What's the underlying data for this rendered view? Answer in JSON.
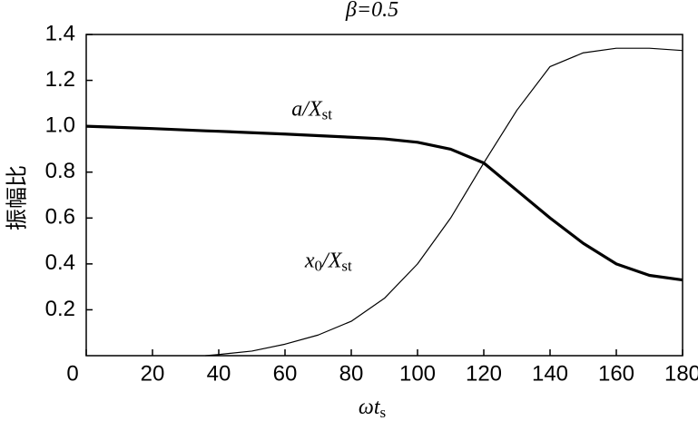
{
  "chart_data": {
    "type": "line",
    "title": "β=0.5",
    "x_label": {
      "main": "ωt",
      "sub": "s"
    },
    "y_label": "振幅比",
    "x": [
      0,
      20,
      36,
      40,
      50,
      60,
      70,
      80,
      90,
      100,
      110,
      120,
      130,
      140,
      150,
      160,
      170,
      180
    ],
    "series": [
      {
        "color": "#000000",
        "width": 3.2,
        "values": [
          1.0,
          0.99,
          0.98,
          0.978,
          0.972,
          0.966,
          0.959,
          0.952,
          0.945,
          0.93,
          0.9,
          0.84,
          0.72,
          0.6,
          0.49,
          0.4,
          0.35,
          0.33
        ],
        "annotation": {
          "main": "a/X",
          "sub": "st",
          "x": 62,
          "y": 1.07
        }
      },
      {
        "color": "#000000",
        "width": 1.2,
        "values": [
          null,
          null,
          0.0,
          0.005,
          0.02,
          0.05,
          0.09,
          0.15,
          0.25,
          0.4,
          0.6,
          0.84,
          1.07,
          1.26,
          1.32,
          1.34,
          1.34,
          1.33
        ],
        "annotation": {
          "main": "x",
          "sub": "0",
          "main2": "/X",
          "sub2": "st",
          "x": 66,
          "y": 0.41
        }
      }
    ],
    "xlim": [
      0,
      180
    ],
    "xticks": [
      0,
      20,
      40,
      60,
      80,
      100,
      120,
      140,
      160,
      180
    ],
    "ylim": [
      0,
      1.4
    ],
    "yticks": [
      0.2,
      0.4,
      0.6,
      0.8,
      1.0,
      1.2,
      1.4
    ]
  }
}
